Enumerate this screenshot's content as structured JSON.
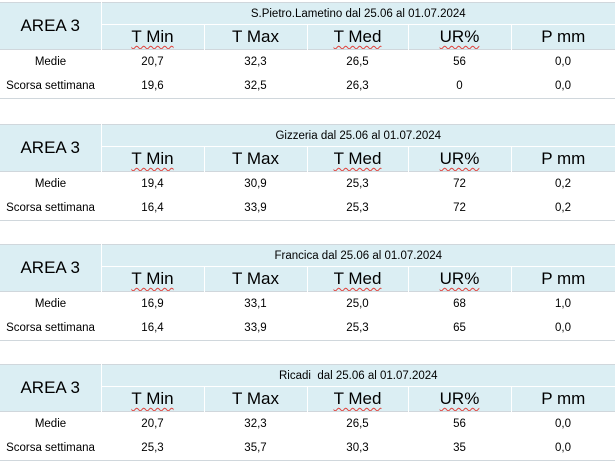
{
  "blocks": [
    {
      "area": "AREA 3",
      "title": "S.Pietro.Lametino dal 25.06 al 01.07.2024",
      "headers": [
        "T Min",
        "T Max",
        "T Med",
        "UR%",
        "P mm"
      ],
      "rows": [
        {
          "label": "Medie",
          "values": [
            "20,7",
            "32,3",
            "26,5",
            "56",
            "0,0"
          ]
        },
        {
          "label": "Scorsa settimana",
          "values": [
            "19,6",
            "32,5",
            "26,3",
            "0",
            "0,0"
          ]
        }
      ]
    },
    {
      "area": "AREA 3",
      "title": "Gizzeria dal 25.06 al 01.07.2024",
      "headers": [
        "T Min",
        "T Max",
        "T Med",
        "UR%",
        "P mm"
      ],
      "rows": [
        {
          "label": "Medie",
          "values": [
            "19,4",
            "30,9",
            "25,3",
            "72",
            "0,2"
          ]
        },
        {
          "label": "Scorsa settimana",
          "values": [
            "16,4",
            "33,9",
            "25,3",
            "72",
            "0,2"
          ]
        }
      ]
    },
    {
      "area": "AREA 3",
      "title": "Francica dal 25.06 al 01.07.2024",
      "headers": [
        "T Min",
        "T Max",
        "T Med",
        "UR%",
        "P mm"
      ],
      "rows": [
        {
          "label": "Medie",
          "values": [
            "16,9",
            "33,1",
            "25,0",
            "68",
            "1,0"
          ]
        },
        {
          "label": "Scorsa settimana",
          "values": [
            "16,4",
            "33,9",
            "25,3",
            "65",
            "0,0"
          ]
        }
      ]
    },
    {
      "area": "AREA 3",
      "title": "Ricadi  dal 25.06 al 01.07.2024",
      "headers": [
        "T Min",
        "T Max",
        "T Med",
        "UR%",
        "P mm"
      ],
      "rows": [
        {
          "label": "Medie",
          "values": [
            "20,7",
            "32,3",
            "26,5",
            "56",
            "0,0"
          ]
        },
        {
          "label": "Scorsa settimana",
          "values": [
            "25,3",
            "35,7",
            "30,3",
            "35",
            "0,0"
          ]
        }
      ]
    }
  ],
  "colors": {
    "header_fill": "#dbeef3",
    "spellcheck_underline": "#e0403a"
  }
}
